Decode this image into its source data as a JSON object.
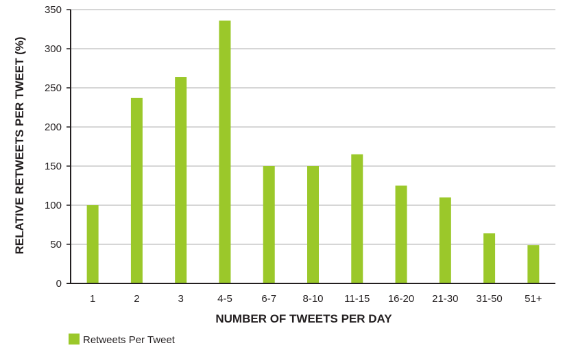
{
  "chart_data": {
    "type": "bar",
    "categories": [
      "1",
      "2",
      "3",
      "4-5",
      "6-7",
      "8-10",
      "11-15",
      "16-20",
      "21-30",
      "31-50",
      "51+"
    ],
    "series": [
      {
        "name": "Retweets Per Tweet",
        "values": [
          100,
          237,
          264,
          336,
          150,
          150,
          165,
          125,
          110,
          64,
          49
        ]
      }
    ],
    "xlabel": "NUMBER OF TWEETS PER DAY",
    "ylabel": "RELATIVE RETWEETS PER TWEET (%)",
    "ylim": [
      0,
      350
    ],
    "yticks": [
      0,
      50,
      100,
      150,
      200,
      250,
      300,
      350
    ],
    "grid": true,
    "legend_position": "bottom-left",
    "colors": {
      "bar": "#9bc82a",
      "grid": "#c8c8c8",
      "axis": "#231f20"
    }
  }
}
